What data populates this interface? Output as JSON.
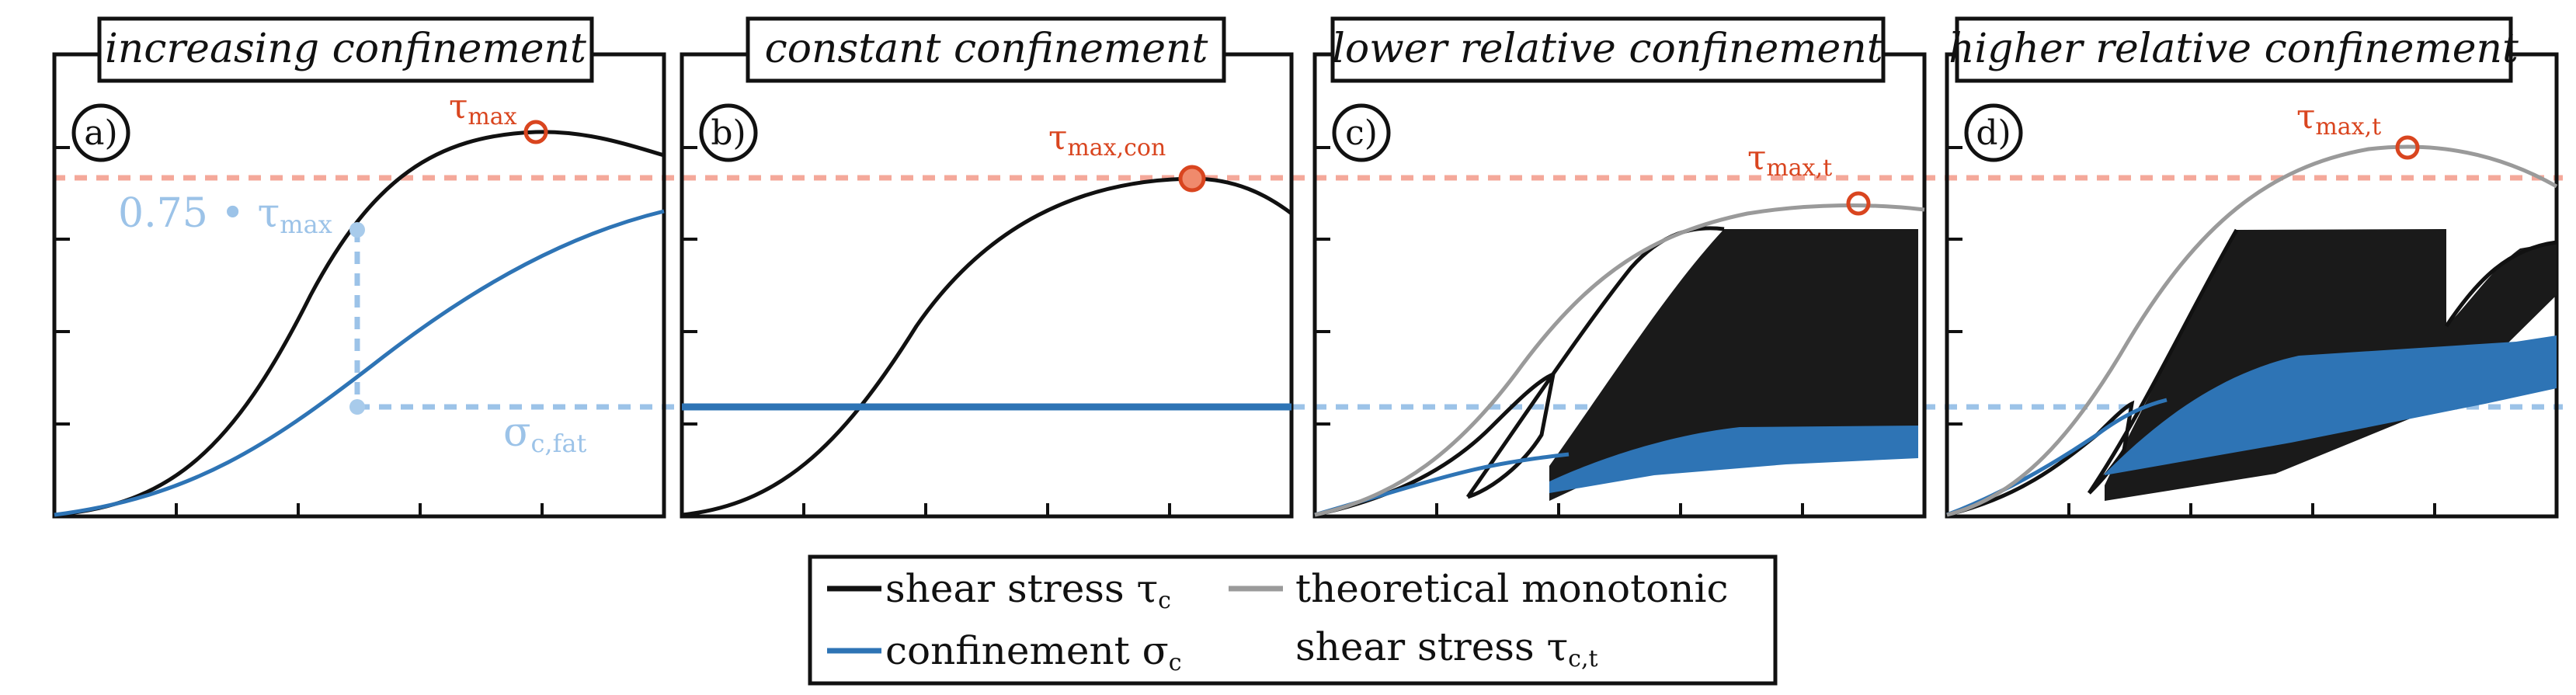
{
  "colors": {
    "shear": "#111111",
    "confinement": "#2e74b5",
    "theoretical": "#9a9a9a",
    "tau_max_ref": "#f4a89a",
    "sigma_fat_ref": "#9cc3e8",
    "marker_red": "#d9451f",
    "marker_blue": "#a8cbeb"
  },
  "panels": [
    {
      "id": "a",
      "label": "a)",
      "title": "increasing confinement",
      "annotations": {
        "tau": "τ",
        "tau_sub": "max",
        "factor_text": "0.75 • τ",
        "factor_sub": "max",
        "sigma": "σ",
        "sigma_sub": "c,fat"
      }
    },
    {
      "id": "b",
      "label": "b)",
      "title": "constant  confinement",
      "annotations": {
        "tau": "τ",
        "tau_sub": "max,con"
      }
    },
    {
      "id": "c",
      "label": "c)",
      "title": "lower relative confinement",
      "annotations": {
        "tau": "τ",
        "tau_sub": "max,t"
      }
    },
    {
      "id": "d",
      "label": "d)",
      "title": "higher relative confinement",
      "annotations": {
        "tau": "τ",
        "tau_sub": "max,t"
      }
    }
  ],
  "legend": {
    "shear": {
      "text": "shear stress τ",
      "sub": "c"
    },
    "confinement": {
      "text": "confinement σ",
      "sub": "c"
    },
    "theoretical_line1": "theoretical monotonic",
    "theoretical_line2": {
      "text": "shear stress τ",
      "sub": "c,t"
    }
  }
}
